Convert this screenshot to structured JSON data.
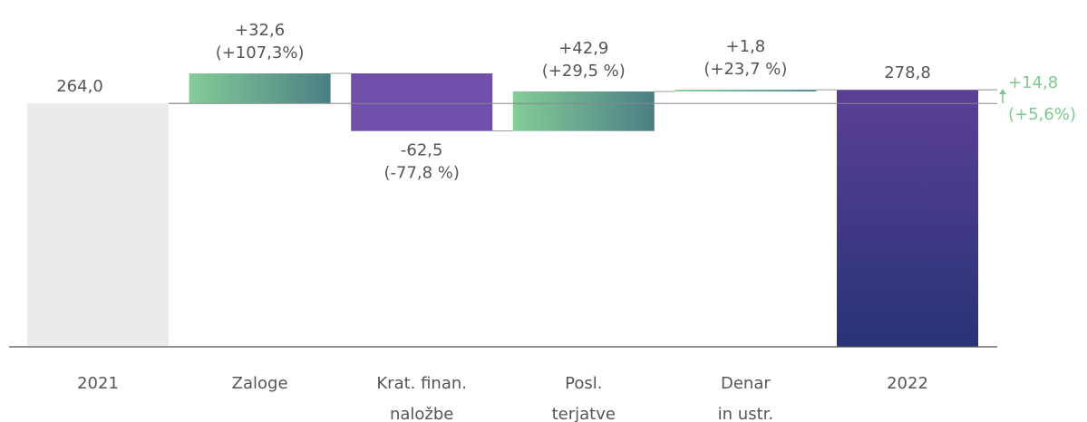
{
  "chart_data": {
    "type": "waterfall",
    "categories": [
      [
        "2021"
      ],
      [
        "Zaloge"
      ],
      [
        "Krat. finan.",
        "naložbe"
      ],
      [
        "Posl.",
        "terjatve"
      ],
      [
        "Denar",
        "in ustr."
      ],
      [
        "2022"
      ]
    ],
    "values": [
      264.0,
      32.6,
      -62.5,
      42.9,
      1.8,
      278.8
    ],
    "value_labels": [
      "264,0",
      "+32,6",
      "-62,5",
      "+42,9",
      "+1,8",
      "278,8"
    ],
    "percent_labels": [
      null,
      "(+107,3%)",
      "(-77,8 %)",
      "(+29,5 %)",
      "(+23,7 %)",
      null
    ],
    "totals": [
      true,
      false,
      false,
      false,
      false,
      true
    ],
    "colors": {
      "start_total": "#ecebe9",
      "end_total": [
        "#5b3f97",
        "#283378"
      ],
      "increase": [
        "#84cc98",
        "#4b7f84"
      ],
      "decrease": "#7150ab",
      "net": "#7cc98f"
    },
    "net_change": {
      "value": 14.8,
      "label": "+14,8",
      "percent_label": "(+5,6%)"
    }
  }
}
